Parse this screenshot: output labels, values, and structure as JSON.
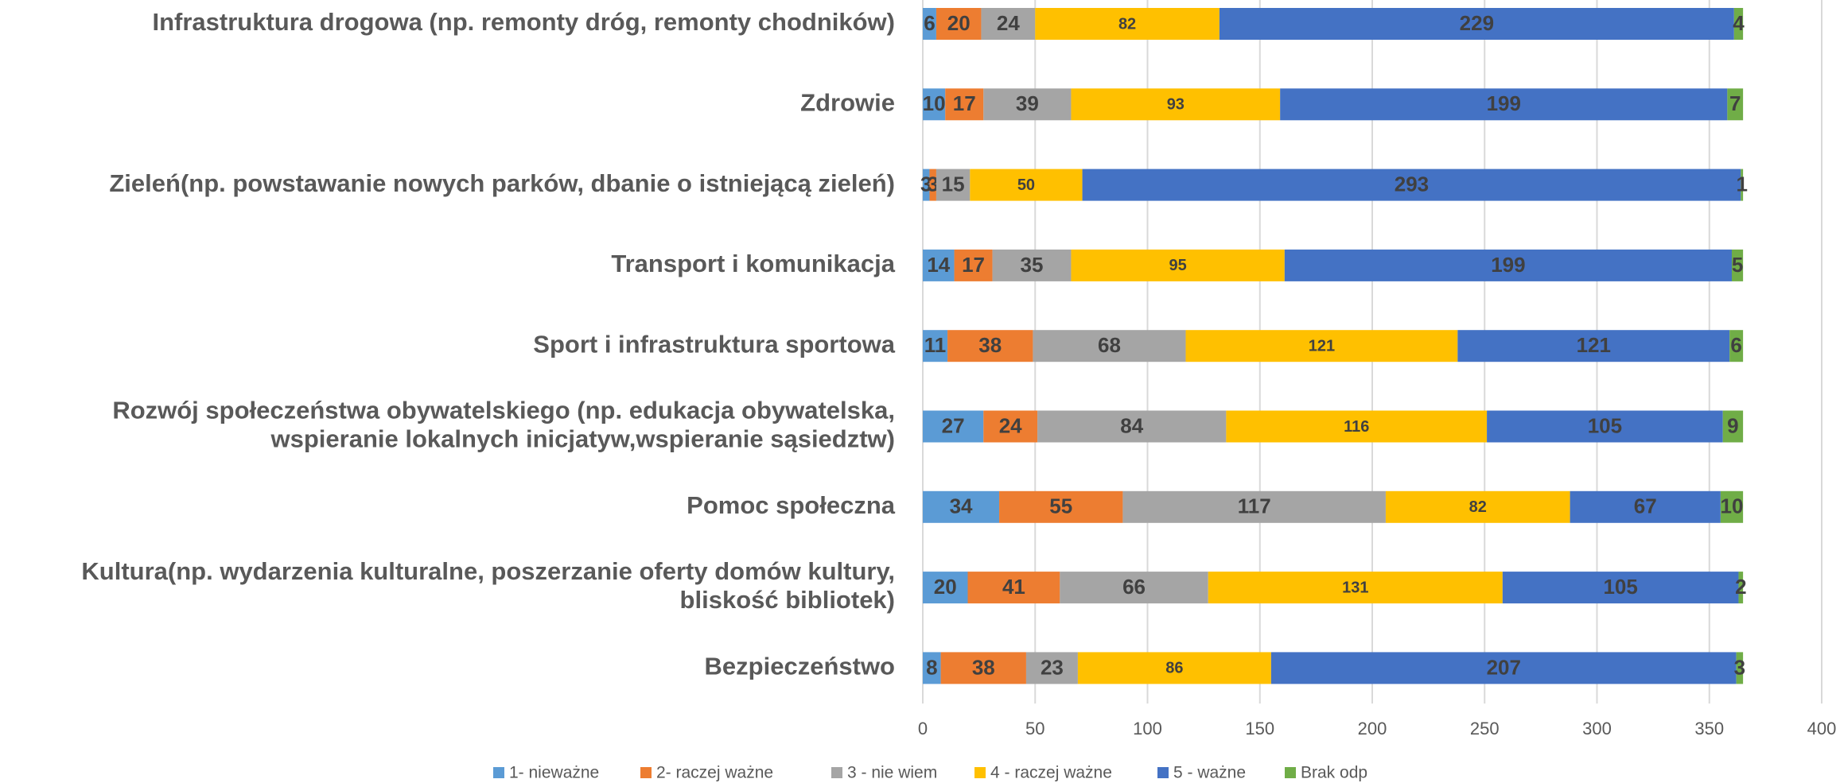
{
  "chart_data": {
    "type": "stacked_bar_horizontal",
    "categories": [
      "Infrastruktura drogowa (np. remonty dróg, remonty chodników)",
      "Zdrowie",
      "Zieleń(np. powstawanie nowych parków, dbanie o istniejącą zieleń)",
      "Transport i komunikacja",
      "Sport i infrastruktura sportowa",
      "Rozwój społeczeństwa obywatelskiego (np. edukacja obywatelska,\nwspieranie lokalnych inicjatyw,wspieranie sąsiedztw)",
      "Pomoc społeczna",
      "Kultura(np. wydarzenia kulturalne, poszerzanie oferty domów kultury,\nbliskość bibliotek)",
      "Bezpieczeństwo"
    ],
    "series": [
      {
        "name": "1- nieważne",
        "color": "#5b9bd5",
        "values": [
          6,
          10,
          3,
          14,
          11,
          27,
          34,
          20,
          8
        ]
      },
      {
        "name": "2- raczej ważne",
        "color": "#ed7d31",
        "values": [
          20,
          17,
          3,
          17,
          38,
          24,
          55,
          41,
          38
        ]
      },
      {
        "name": "3 - nie wiem",
        "color": "#a5a5a5",
        "values": [
          24,
          39,
          15,
          35,
          68,
          84,
          117,
          66,
          23
        ]
      },
      {
        "name": "4 - raczej ważne",
        "color": "#ffc000",
        "values": [
          82,
          93,
          50,
          95,
          121,
          116,
          82,
          131,
          86
        ]
      },
      {
        "name": "5 - ważne",
        "color": "#4472c4",
        "values": [
          229,
          199,
          293,
          199,
          121,
          105,
          67,
          105,
          207
        ]
      },
      {
        "name": "Brak odp",
        "color": "#70ad47",
        "values": [
          4,
          7,
          1,
          5,
          6,
          9,
          10,
          2,
          3
        ]
      }
    ],
    "xlim": [
      0,
      400
    ],
    "xticks": [
      0,
      50,
      100,
      150,
      200,
      250,
      300,
      350,
      400
    ],
    "grid": true,
    "legend": "bottom"
  }
}
